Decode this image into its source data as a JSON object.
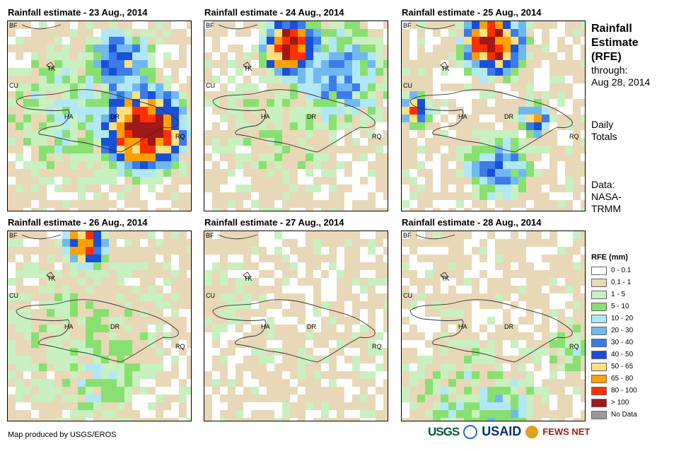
{
  "panels": [
    {
      "title": "Rainfall estimate - 23 Aug., 2014",
      "day": "23"
    },
    {
      "title": "Rainfall estimate - 24 Aug., 2014",
      "day": "24"
    },
    {
      "title": "Rainfall estimate - 25 Aug., 2014",
      "day": "25"
    },
    {
      "title": "Rainfall estimate - 26 Aug., 2014",
      "day": "26"
    },
    {
      "title": "Rainfall estimate - 27 Aug., 2014",
      "day": "27"
    },
    {
      "title": "Rainfall estimate - 28 Aug., 2014",
      "day": "28"
    }
  ],
  "map_labels": {
    "bf": "BF",
    "tk": "TK",
    "cu": "CU",
    "ha": "HA",
    "dr": "DR",
    "rq": "RQ"
  },
  "side": {
    "title_line1": "Rainfall",
    "title_line2": "Estimate",
    "title_line3": "(RFE)",
    "through_label": "through:",
    "through_date": "Aug 28, 2014",
    "totals_line1": "Daily",
    "totals_line2": "Totals",
    "data_line1": "Data:",
    "data_line2": "NASA-",
    "data_line3": "TRMM"
  },
  "legend": {
    "title": "RFE (mm)",
    "items": [
      {
        "label": "0 - 0.1",
        "color": "#ffffff"
      },
      {
        "label": "0.1 - 1",
        "color": "#e8d8b8"
      },
      {
        "label": "1 - 5",
        "color": "#c8f0c0"
      },
      {
        "label": "5 - 10",
        "color": "#88e070"
      },
      {
        "label": "10 - 20",
        "color": "#b0e8f8"
      },
      {
        "label": "20 - 30",
        "color": "#70b8f0"
      },
      {
        "label": "30 - 40",
        "color": "#3c7ce8"
      },
      {
        "label": "40 - 50",
        "color": "#1850d8"
      },
      {
        "label": "50 - 65",
        "color": "#ffe080"
      },
      {
        "label": "65 - 80",
        "color": "#ffa000"
      },
      {
        "label": "80 - 100",
        "color": "#ff3000"
      },
      {
        "label": "> 100",
        "color": "#a01818"
      },
      {
        "label": "No Data",
        "color": "#999999"
      }
    ]
  },
  "footer": {
    "credit": "Map produced by USGS/EROS"
  },
  "logos": {
    "usgs": "USGS",
    "usaid": "USAID",
    "fews": "FEWS NET"
  }
}
